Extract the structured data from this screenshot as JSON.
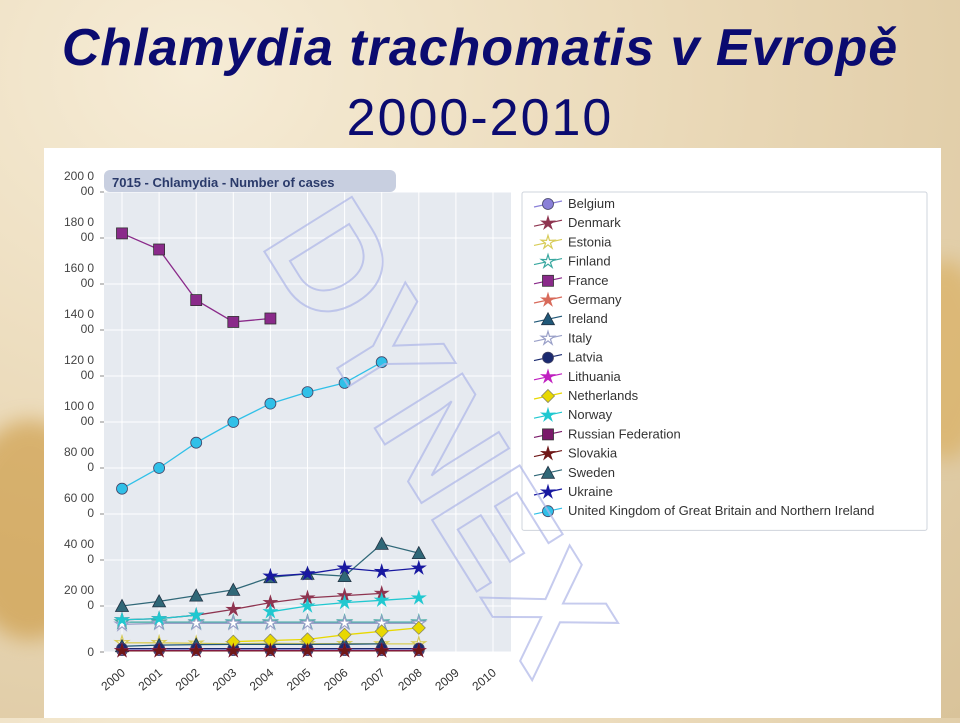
{
  "slide": {
    "title_line1": "Chlamydia trachomatis v Evropě",
    "title_line2": "2000-2010"
  },
  "watermark": "DYNEX",
  "colors": {
    "title": "#0b0b70",
    "plot_bg": "#e6eaf0",
    "header_tab": "#c8cfe0"
  },
  "chart_data": {
    "type": "line",
    "title": "7015 - Chlamydia - Number of cases",
    "categories": [
      "2000",
      "2001",
      "2002",
      "2003",
      "2004",
      "2005",
      "2006",
      "2007",
      "2008",
      "2009",
      "2010"
    ],
    "y_tick_labels": [
      [
        "0"
      ],
      [
        "20 00",
        "0"
      ],
      [
        "40 00",
        "0"
      ],
      [
        "60 00",
        "0"
      ],
      [
        "80 00",
        "0"
      ],
      [
        "100 0",
        "00"
      ],
      [
        "120 0",
        "00"
      ],
      [
        "140 0",
        "00"
      ],
      [
        "160 0",
        "00"
      ],
      [
        "180 0",
        "00"
      ],
      [
        "200 0",
        "00"
      ]
    ],
    "ylim": [
      0,
      200000
    ],
    "grid": true,
    "legend_position": "right",
    "series": [
      {
        "name": "Belgium",
        "color": "#8a80d8",
        "marker": "circle",
        "values": [
          800,
          800,
          800,
          800,
          800,
          800,
          800,
          800,
          800,
          null,
          null
        ]
      },
      {
        "name": "Denmark",
        "color": "#8e3450",
        "marker": "star",
        "values": [
          14000,
          14500,
          16000,
          18500,
          21500,
          23500,
          24500,
          25500,
          null,
          null,
          null
        ]
      },
      {
        "name": "Estonia",
        "color": "#d8cc58",
        "marker": "star-open",
        "values": [
          4000,
          4000,
          3800,
          3500,
          3800,
          3600,
          3600,
          3500,
          3500,
          null,
          null
        ]
      },
      {
        "name": "Finland",
        "color": "#3aa8a0",
        "marker": "star-open",
        "values": [
          13000,
          13000,
          13000,
          13000,
          13000,
          13000,
          13000,
          13000,
          13000,
          null,
          null
        ]
      },
      {
        "name": "France",
        "color": "#8a2a8a",
        "marker": "square",
        "values": [
          182000,
          175000,
          153000,
          143500,
          145000,
          null,
          null,
          null,
          null,
          null,
          null
        ]
      },
      {
        "name": "Germany",
        "color": "#d86a5a",
        "marker": "star",
        "values": [
          null,
          null,
          null,
          null,
          null,
          null,
          null,
          null,
          null,
          null,
          null
        ]
      },
      {
        "name": "Ireland",
        "color": "#205878",
        "marker": "triangle",
        "values": [
          2500,
          3000,
          3200,
          3300,
          3300,
          3300,
          3400,
          3500,
          null,
          null,
          null
        ]
      },
      {
        "name": "Italy",
        "color": "#9aa0c8",
        "marker": "star-open",
        "values": [
          12000,
          12500,
          12500,
          12500,
          12500,
          12500,
          12500,
          12500,
          12500,
          null,
          null
        ]
      },
      {
        "name": "Latvia",
        "color": "#1a2a70",
        "marker": "circle",
        "values": [
          1500,
          1500,
          1500,
          1500,
          1500,
          1500,
          1500,
          1500,
          1500,
          null,
          null
        ]
      },
      {
        "name": "Lithuania",
        "color": "#c020c0",
        "marker": "star",
        "values": [
          600,
          600,
          600,
          600,
          600,
          600,
          600,
          600,
          600,
          null,
          null
        ]
      },
      {
        "name": "Netherlands",
        "color": "#e8d800",
        "marker": "diamond",
        "values": [
          null,
          null,
          null,
          4500,
          5000,
          5500,
          7500,
          9000,
          10500,
          null,
          null
        ]
      },
      {
        "name": "Norway",
        "color": "#20c8d0",
        "marker": "star",
        "values": [
          14000,
          14500,
          16000,
          null,
          17500,
          20000,
          21500,
          22500,
          23500,
          null,
          null
        ]
      },
      {
        "name": "Russian Federation",
        "color": "#7a1a6a",
        "marker": "square",
        "values": [
          null,
          null,
          null,
          null,
          null,
          null,
          null,
          null,
          null,
          null,
          null
        ]
      },
      {
        "name": "Slovakia",
        "color": "#701818",
        "marker": "star",
        "values": [
          500,
          500,
          500,
          500,
          500,
          500,
          500,
          500,
          500,
          null,
          null
        ]
      },
      {
        "name": "Sweden",
        "color": "#306878",
        "marker": "triangle",
        "values": [
          20000,
          22000,
          24500,
          27000,
          32500,
          34000,
          33000,
          47000,
          43000,
          null,
          null
        ]
      },
      {
        "name": "Ukraine",
        "color": "#1818a0",
        "marker": "star",
        "values": [
          null,
          null,
          null,
          null,
          33000,
          34000,
          36500,
          35000,
          36500,
          null,
          null
        ]
      },
      {
        "name": "United Kingdom of Great Britain and Northern Ireland",
        "color": "#30c0e8",
        "marker": "circle",
        "values": [
          71000,
          80000,
          91000,
          100000,
          108000,
          113000,
          117000,
          126000,
          null,
          null,
          null
        ]
      }
    ]
  }
}
